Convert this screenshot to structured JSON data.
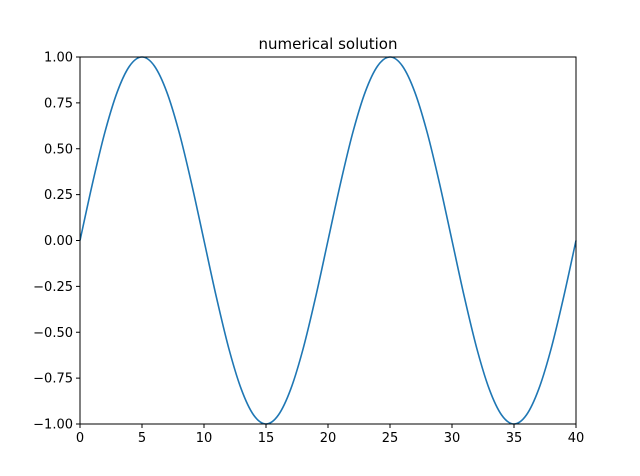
{
  "chart_data": {
    "type": "line",
    "title": "numerical solution",
    "xlabel": "",
    "ylabel": "",
    "xlim": [
      0,
      40
    ],
    "ylim": [
      -1.0,
      1.0
    ],
    "grid": false,
    "x_ticks": [
      0,
      5,
      10,
      15,
      20,
      25,
      30,
      35,
      40
    ],
    "x_tick_labels": [
      "0",
      "5",
      "10",
      "15",
      "20",
      "25",
      "30",
      "35",
      "40"
    ],
    "y_ticks": [
      -1.0,
      -0.75,
      -0.5,
      -0.25,
      0.0,
      0.25,
      0.5,
      0.75,
      1.0
    ],
    "y_tick_labels": [
      "−1.00",
      "−0.75",
      "−0.50",
      "−0.25",
      "0.00",
      "0.25",
      "0.50",
      "0.75",
      "1.00"
    ],
    "series": [
      {
        "color": "#1f77b4",
        "x": [
          0,
          1,
          2,
          3,
          4,
          5,
          6,
          7,
          8,
          9,
          10,
          11,
          12,
          13,
          14,
          15,
          16,
          17,
          18,
          19,
          20,
          21,
          22,
          23,
          24,
          25,
          26,
          27,
          28,
          29,
          30,
          31,
          32,
          33,
          34,
          35,
          36,
          37,
          38,
          39,
          40
        ],
        "y": [
          0.0,
          0.309,
          0.588,
          0.809,
          0.951,
          1.0,
          0.951,
          0.809,
          0.588,
          0.309,
          0.0,
          -0.309,
          -0.588,
          -0.809,
          -0.951,
          -1.0,
          -0.951,
          -0.809,
          -0.588,
          -0.309,
          0.0,
          0.309,
          0.588,
          0.809,
          0.951,
          1.0,
          0.951,
          0.809,
          0.588,
          0.309,
          0.0,
          -0.309,
          -0.588,
          -0.809,
          -0.951,
          -1.0,
          -0.951,
          -0.809,
          -0.588,
          -0.309,
          0.0
        ]
      }
    ]
  }
}
